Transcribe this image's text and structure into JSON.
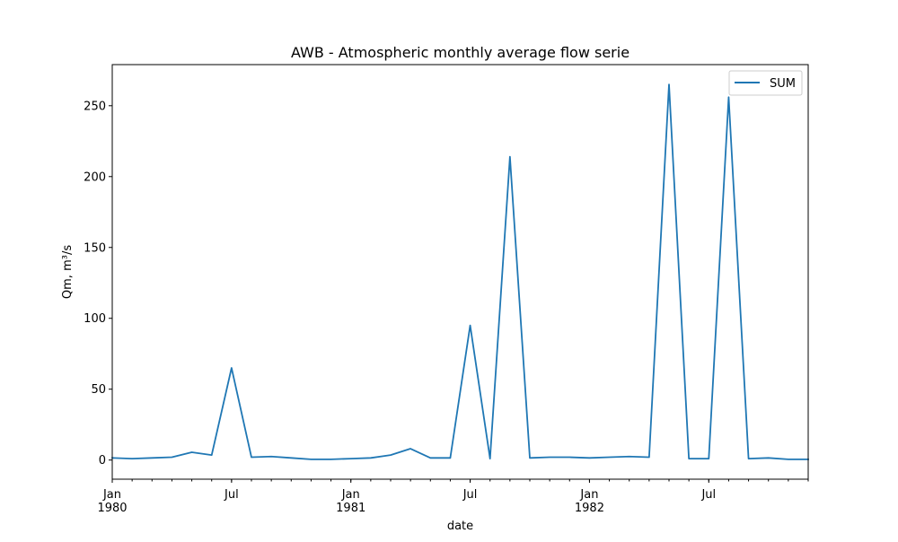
{
  "chart_data": {
    "type": "line",
    "title": "AWB - Atmospheric monthly average flow serie",
    "xlabel": "date",
    "ylabel": "Qm, m³/s",
    "x_range": [
      "1980-01",
      "1982-12"
    ],
    "ylim": [
      -13.5,
      279
    ],
    "yticks": [
      0,
      50,
      100,
      150,
      200,
      250
    ],
    "xtick_labels": [
      {
        "date": "1980-01",
        "line1": "Jan",
        "line2": "1980"
      },
      {
        "date": "1980-07",
        "line1": "Jul",
        "line2": ""
      },
      {
        "date": "1981-01",
        "line1": "Jan",
        "line2": "1981"
      },
      {
        "date": "1981-07",
        "line1": "Jul",
        "line2": ""
      },
      {
        "date": "1982-01",
        "line1": "Jan",
        "line2": "1982"
      },
      {
        "date": "1982-07",
        "line1": "Jul",
        "line2": ""
      }
    ],
    "grid": false,
    "legend_position": "top-right",
    "series": [
      {
        "name": "SUM",
        "color": "#1f77b4",
        "x": [
          "1980-01",
          "1980-02",
          "1980-03",
          "1980-04",
          "1980-05",
          "1980-06",
          "1980-07",
          "1980-08",
          "1980-09",
          "1980-10",
          "1980-11",
          "1980-12",
          "1981-01",
          "1981-02",
          "1981-03",
          "1981-04",
          "1981-05",
          "1981-06",
          "1981-07",
          "1981-08",
          "1981-09",
          "1981-10",
          "1981-11",
          "1981-12",
          "1982-01",
          "1982-02",
          "1982-03",
          "1982-04",
          "1982-05",
          "1982-06",
          "1982-07",
          "1982-08",
          "1982-09",
          "1982-10",
          "1982-11",
          "1982-12"
        ],
        "values": [
          1.5,
          1,
          1.5,
          2,
          5.5,
          3.5,
          65,
          2,
          2.5,
          1.5,
          0.5,
          0.5,
          1,
          1.5,
          3.5,
          8,
          1.5,
          1.5,
          95,
          1,
          214,
          1.5,
          2,
          2,
          1.5,
          2,
          2.5,
          2,
          265,
          1,
          1,
          256,
          1,
          1.5,
          0.5,
          0.5
        ]
      }
    ]
  }
}
